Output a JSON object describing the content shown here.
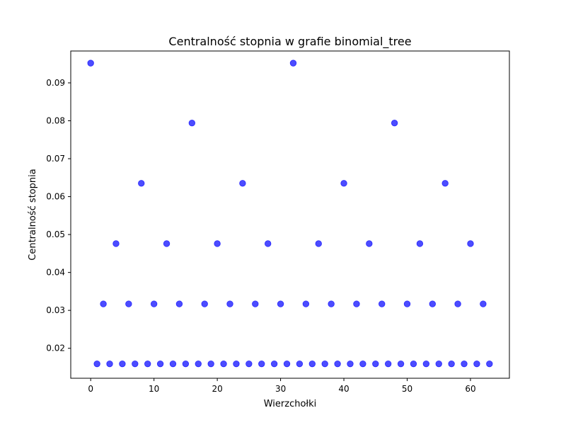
{
  "chart_data": {
    "type": "scatter",
    "title": "Centralność stopnia w grafie binomial_tree",
    "xlabel": "Wierzchołki",
    "ylabel": "Centralność stopnia",
    "xlim": [
      -3.15,
      66.15
    ],
    "ylim": [
      0.0121,
      0.0984
    ],
    "x_ticks": [
      0,
      10,
      20,
      30,
      40,
      50,
      60
    ],
    "y_ticks": [
      0.02,
      0.03,
      0.04,
      0.05,
      0.06,
      0.07,
      0.08,
      0.09
    ],
    "grid": false,
    "marker_color": "#0000ff",
    "marker_alpha": 0.7,
    "x": [
      0,
      1,
      2,
      3,
      4,
      5,
      6,
      7,
      8,
      9,
      10,
      11,
      12,
      13,
      14,
      15,
      16,
      17,
      18,
      19,
      20,
      21,
      22,
      23,
      24,
      25,
      26,
      27,
      28,
      29,
      30,
      31,
      32,
      33,
      34,
      35,
      36,
      37,
      38,
      39,
      40,
      41,
      42,
      43,
      44,
      45,
      46,
      47,
      48,
      49,
      50,
      51,
      52,
      53,
      54,
      55,
      56,
      57,
      58,
      59,
      60,
      61,
      62,
      63
    ],
    "values": [
      0.0952,
      0.0159,
      0.0317,
      0.0159,
      0.0476,
      0.0159,
      0.0317,
      0.0159,
      0.0635,
      0.0159,
      0.0317,
      0.0159,
      0.0476,
      0.0159,
      0.0317,
      0.0159,
      0.0794,
      0.0159,
      0.0317,
      0.0159,
      0.0476,
      0.0159,
      0.0317,
      0.0159,
      0.0635,
      0.0159,
      0.0317,
      0.0159,
      0.0476,
      0.0159,
      0.0317,
      0.0159,
      0.0952,
      0.0159,
      0.0317,
      0.0159,
      0.0476,
      0.0159,
      0.0317,
      0.0159,
      0.0635,
      0.0159,
      0.0317,
      0.0159,
      0.0476,
      0.0159,
      0.0317,
      0.0159,
      0.0794,
      0.0159,
      0.0317,
      0.0159,
      0.0476,
      0.0159,
      0.0317,
      0.0159,
      0.0635,
      0.0159,
      0.0317,
      0.0159,
      0.0476,
      0.0159,
      0.0317,
      0.0159
    ]
  }
}
